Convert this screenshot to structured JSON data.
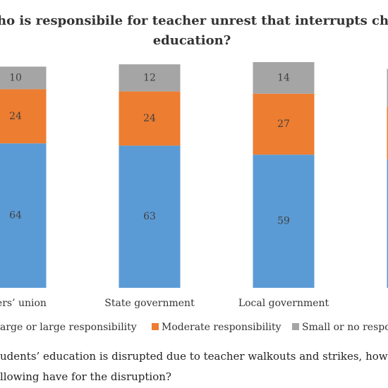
{
  "chart_data": {
    "type": "bar",
    "stacked": true,
    "title": [
      "ho is responsibile for teacher unrest that interrupts childre",
      "education?"
    ],
    "categories": [
      "chers’ union",
      "State government",
      "Local government",
      null
    ],
    "series": [
      {
        "name": "arge or large responsibility",
        "color": "#5b9bd5",
        "values": [
          64,
          63,
          59,
          57
        ]
      },
      {
        "name": "Moderate responsibility",
        "color": "#ed7d31",
        "values": [
          24,
          24,
          27,
          23
        ]
      },
      {
        "name": "Small or no respo",
        "color": "#a5a5a5",
        "values": [
          10,
          12,
          14,
          17
        ]
      }
    ],
    "note": [
      "udents’ education is disrupted due to teacher walkouts and strikes, how m",
      "llowing have for the disruption?"
    ]
  }
}
